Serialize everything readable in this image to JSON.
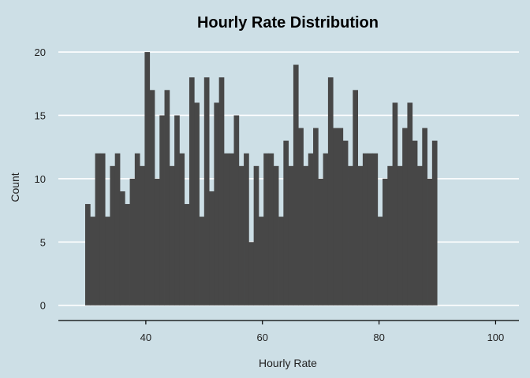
{
  "chart_data": {
    "type": "bar",
    "title": "Hourly Rate Distribution",
    "xlabel": "Hourly Rate",
    "ylabel": "Count",
    "xlim": [
      25,
      104
    ],
    "ylim": [
      -1.2,
      21
    ],
    "x_ticks": [
      40,
      60,
      80,
      100
    ],
    "y_ticks": [
      0,
      5,
      10,
      15,
      20
    ],
    "grid": "horizontal",
    "bin_start": 29.6,
    "bin_width": 0.85,
    "counts": [
      8,
      7,
      12,
      12,
      7,
      11,
      12,
      9,
      8,
      10,
      12,
      11,
      20,
      17,
      10,
      15,
      17,
      11,
      15,
      12,
      8,
      18,
      16,
      7,
      18,
      9,
      16,
      18,
      12,
      12,
      15,
      11,
      12,
      5,
      11,
      7,
      12,
      12,
      11,
      7,
      13,
      11,
      19,
      14,
      11,
      12,
      14,
      10,
      12,
      18,
      14,
      14,
      13,
      11,
      17,
      11,
      12,
      12,
      12,
      7,
      10,
      11,
      16,
      11,
      14,
      16,
      13,
      11,
      14,
      10,
      13
    ],
    "colors": {
      "background": "#cddfe6",
      "bar": "#474747",
      "grid": "#ffffff",
      "axis": "#000000"
    }
  }
}
